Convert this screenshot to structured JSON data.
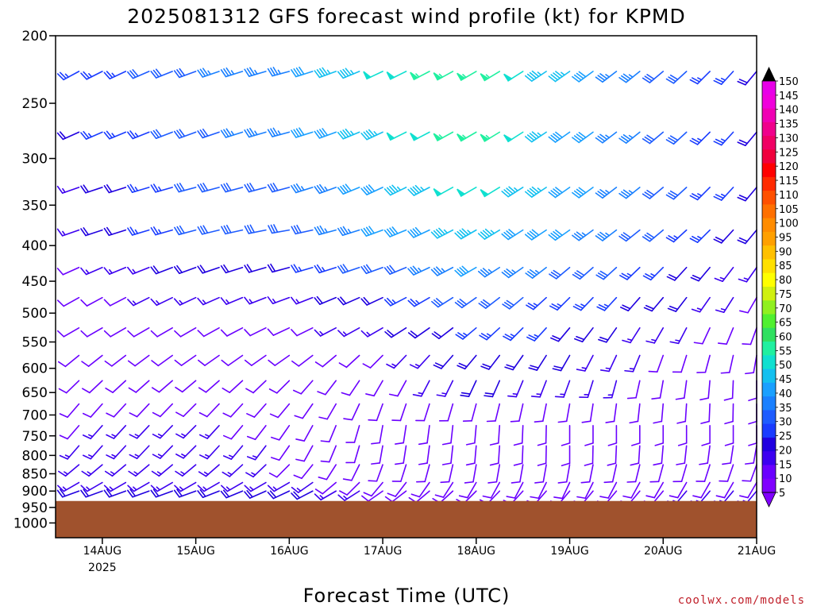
{
  "chart_data": {
    "type": "wind-barb time-height profile",
    "title": "2025081312 GFS forecast wind profile (kt) for KPMD",
    "xlabel": "Forecast Time (UTC)",
    "ylabel": "",
    "y_scale": "log",
    "y_inverted": true,
    "ylim": [
      200,
      1050
    ],
    "y_ticks": [
      200,
      250,
      300,
      350,
      400,
      450,
      500,
      550,
      600,
      650,
      700,
      750,
      800,
      850,
      900,
      950,
      1000
    ],
    "x_ticks": [
      {
        "time": "2025-08-14T00",
        "label": "14AUG",
        "sublabel": "2025"
      },
      {
        "time": "2025-08-15T00",
        "label": "15AUG"
      },
      {
        "time": "2025-08-16T00",
        "label": "16AUG"
      },
      {
        "time": "2025-08-17T00",
        "label": "17AUG"
      },
      {
        "time": "2025-08-18T00",
        "label": "18AUG"
      },
      {
        "time": "2025-08-19T00",
        "label": "19AUG"
      },
      {
        "time": "2025-08-20T00",
        "label": "20AUG"
      },
      {
        "time": "2025-08-21T00",
        "label": "21AUG"
      }
    ],
    "xlim": [
      "2025-08-13T12",
      "2025-08-21T00"
    ],
    "time_step_hours": 6,
    "levels": [
      225,
      275,
      330,
      380,
      430,
      475,
      525,
      575,
      625,
      675,
      725,
      775,
      825,
      875,
      900
    ],
    "wind_keyframes": [
      {
        "time": "2025-08-13T12",
        "speed": [
          22,
          20,
          14,
          14,
          10,
          10,
          10,
          10,
          10,
          10,
          12,
          14,
          12,
          14,
          18
        ],
        "dir": [
          240,
          245,
          250,
          250,
          245,
          240,
          240,
          230,
          225,
          220,
          220,
          220,
          230,
          240,
          250
        ]
      },
      {
        "time": "2025-08-15T00",
        "speed": [
          32,
          30,
          28,
          28,
          20,
          14,
          12,
          10,
          10,
          12,
          14,
          16,
          16,
          16,
          22
        ],
        "dir": [
          250,
          250,
          255,
          255,
          250,
          245,
          240,
          235,
          230,
          225,
          225,
          225,
          230,
          240,
          250
        ]
      },
      {
        "time": "2025-08-16T00",
        "speed": [
          35,
          35,
          30,
          28,
          22,
          14,
          10,
          8,
          8,
          10,
          10,
          12,
          12,
          14,
          20
        ],
        "dir": [
          255,
          255,
          255,
          260,
          255,
          250,
          245,
          235,
          225,
          220,
          215,
          215,
          225,
          240,
          245
        ]
      },
      {
        "time": "2025-08-17T00",
        "speed": [
          50,
          45,
          40,
          38,
          30,
          22,
          16,
          12,
          10,
          10,
          8,
          8,
          8,
          10,
          12
        ],
        "dir": [
          245,
          245,
          245,
          250,
          250,
          245,
          240,
          225,
          210,
          200,
          190,
          190,
          200,
          220,
          235
        ]
      },
      {
        "time": "2025-08-18T00",
        "speed": [
          56,
          56,
          50,
          44,
          38,
          30,
          24,
          20,
          18,
          12,
          10,
          8,
          8,
          8,
          10
        ],
        "dir": [
          240,
          240,
          240,
          240,
          240,
          235,
          230,
          220,
          205,
          195,
          185,
          185,
          190,
          210,
          225
        ]
      },
      {
        "time": "2025-08-19T00",
        "speed": [
          44,
          42,
          42,
          40,
          32,
          26,
          22,
          18,
          16,
          12,
          8,
          8,
          8,
          10,
          12
        ],
        "dir": [
          235,
          235,
          235,
          235,
          230,
          225,
          220,
          210,
          200,
          190,
          180,
          180,
          190,
          205,
          220
        ]
      },
      {
        "time": "2025-08-20T00",
        "speed": [
          30,
          32,
          30,
          28,
          24,
          20,
          14,
          12,
          10,
          10,
          8,
          8,
          8,
          10,
          12
        ],
        "dir": [
          230,
          230,
          230,
          230,
          225,
          220,
          210,
          200,
          190,
          185,
          180,
          185,
          195,
          210,
          220
        ]
      },
      {
        "time": "2025-08-21T00",
        "speed": [
          20,
          20,
          20,
          18,
          14,
          12,
          10,
          10,
          10,
          10,
          10,
          10,
          10,
          12,
          14
        ],
        "dir": [
          220,
          220,
          220,
          220,
          215,
          210,
          200,
          190,
          180,
          180,
          180,
          190,
          200,
          210,
          220
        ]
      }
    ],
    "terrain": {
      "surface_pressure_hpa": 930,
      "color": "#a0522d"
    }
  },
  "colorbar": {
    "values": [
      5,
      10,
      15,
      20,
      25,
      30,
      35,
      40,
      45,
      50,
      55,
      60,
      65,
      70,
      75,
      80,
      85,
      90,
      95,
      100,
      105,
      110,
      115,
      120,
      125,
      130,
      135,
      140,
      145,
      150
    ],
    "labels": [
      "5",
      "10",
      "15",
      "20",
      "25",
      "30",
      "35",
      "40",
      "45",
      "50",
      "55",
      "60",
      "65",
      "70",
      "75",
      "80",
      "85",
      "90",
      "95",
      "100",
      "105",
      "110",
      "115",
      "120",
      "125",
      "130",
      "135",
      "140",
      "145",
      "150"
    ],
    "colors": [
      "#8000ff",
      "#6a00ff",
      "#3c00f0",
      "#2000e0",
      "#1a3cff",
      "#1e5cff",
      "#1a80ff",
      "#1aa0ff",
      "#14c0f0",
      "#10e0d0",
      "#20f0a0",
      "#30e060",
      "#50f030",
      "#90f020",
      "#d0f010",
      "#ffff00",
      "#ffe000",
      "#ffc000",
      "#ffa000",
      "#ff8c00",
      "#ff7000",
      "#ff5000",
      "#ff2a00",
      "#ff0000",
      "#f0003c",
      "#f00064",
      "#f0008c",
      "#f000b4",
      "#f000dc",
      "#e800e8"
    ]
  },
  "credit": "coolwx.com/models"
}
